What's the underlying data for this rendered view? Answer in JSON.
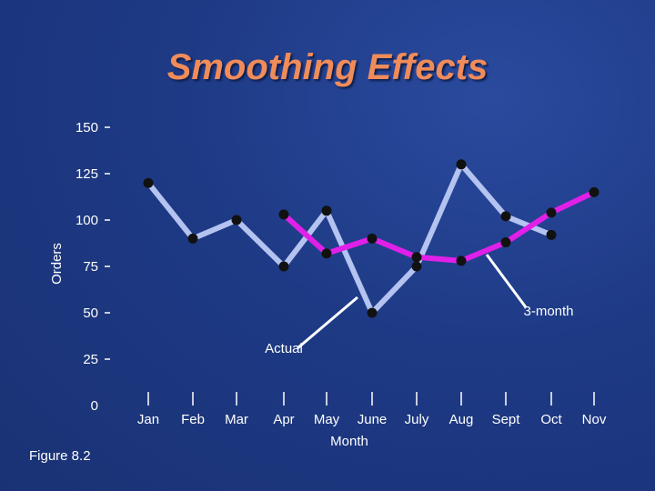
{
  "chart_data": {
    "type": "line",
    "title": "Smoothing Effects",
    "xlabel": "Month",
    "ylabel": "Orders",
    "categories": [
      "Jan",
      "Feb",
      "Mar",
      "Apr",
      "May",
      "June",
      "July",
      "Aug",
      "Sept",
      "Oct",
      "Nov"
    ],
    "ylim": [
      0,
      150
    ],
    "yticks": [
      "0",
      "25",
      "50",
      "75",
      "100",
      "125",
      "150"
    ],
    "series": [
      {
        "name": "Actual",
        "color": "#b4c3f0",
        "values": [
          120,
          90,
          100,
          75,
          105,
          50,
          75,
          130,
          102,
          92,
          null
        ]
      },
      {
        "name": "3-month",
        "color": "#e020e8",
        "values": [
          null,
          null,
          null,
          103,
          82,
          90,
          80,
          78,
          88,
          104,
          115
        ]
      }
    ],
    "annotations": [
      "Actual",
      "3-month"
    ]
  },
  "figure_label": "Figure 8.2"
}
